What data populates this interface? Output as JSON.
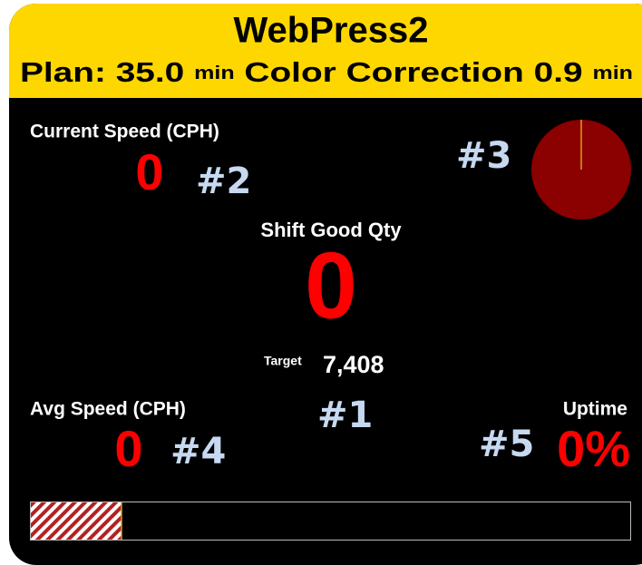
{
  "header": {
    "title": "WebPress2",
    "plan_label": "Plan:",
    "plan_value": "35.0",
    "plan_unit": "min",
    "color_label": "Color Correction",
    "color_value": "0.9",
    "color_unit": "min"
  },
  "current_speed": {
    "label": "Current Speed (CPH)",
    "value": "0",
    "annotation": "#2"
  },
  "pie": {
    "annotation": "#3"
  },
  "shift_good_qty": {
    "label": "Shift Good Qty",
    "value": "0",
    "target_label": "Target",
    "target_value": "7,408",
    "annotation": "#1"
  },
  "avg_speed": {
    "label": "Avg Speed (CPH)",
    "value": "0",
    "annotation": "#4"
  },
  "uptime": {
    "label": "Uptime",
    "value": "0%",
    "annotation": "#5"
  }
}
